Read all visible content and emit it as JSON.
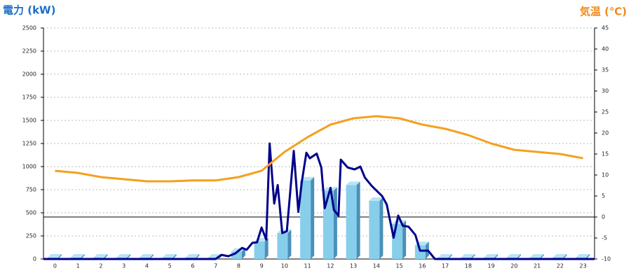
{
  "chart_data": {
    "type": "bar",
    "ylabel": "電力 (kW)",
    "y2label": "気温 (℃)",
    "categories": [
      "0",
      "1",
      "2",
      "3",
      "4",
      "5",
      "6",
      "7",
      "8",
      "9",
      "10",
      "11",
      "12",
      "13",
      "14",
      "15",
      "16",
      "17",
      "18",
      "19",
      "20",
      "21",
      "22",
      "23"
    ],
    "xlim": [
      -0.5,
      23.5
    ],
    "ylim": [
      0,
      2500
    ],
    "yticks": [
      0,
      250,
      500,
      750,
      1000,
      1250,
      1500,
      1750,
      2000,
      2250,
      2500
    ],
    "y2lim": [
      -10,
      45
    ],
    "y2ticks": [
      -10,
      -5,
      0,
      5,
      10,
      15,
      20,
      25,
      30,
      35,
      40,
      45
    ],
    "grid": true,
    "series": [
      {
        "type": "bar",
        "color": "#87ceeb",
        "values": [
          0,
          0,
          0,
          0,
          0,
          0,
          0,
          0,
          80,
          190,
          280,
          850,
          740,
          800,
          630,
          380,
          150,
          0,
          0,
          0,
          0,
          0,
          0,
          0
        ]
      },
      {
        "type": "line",
        "color": "#00008b",
        "x": [
          -0.5,
          7.0,
          7.25,
          7.55,
          7.85,
          8.15,
          8.35,
          8.6,
          8.8,
          9.0,
          9.2,
          9.35,
          9.55,
          9.7,
          9.9,
          10.1,
          10.4,
          10.6,
          10.75,
          10.95,
          11.1,
          11.4,
          11.6,
          11.75,
          12.0,
          12.15,
          12.35,
          12.45,
          12.75,
          13.05,
          13.3,
          13.5,
          13.8,
          14.25,
          14.45,
          14.75,
          14.95,
          15.15,
          15.4,
          15.7,
          15.9,
          16.25,
          16.55,
          23.5
        ],
        "values": [
          0,
          0,
          45,
          30,
          60,
          120,
          100,
          175,
          180,
          340,
          210,
          1250,
          600,
          800,
          280,
          300,
          1170,
          510,
          830,
          1150,
          1090,
          1140,
          990,
          550,
          770,
          530,
          470,
          1075,
          990,
          970,
          1000,
          880,
          790,
          680,
          590,
          230,
          470,
          360,
          350,
          260,
          90,
          90,
          0,
          0
        ]
      },
      {
        "type": "line",
        "color": "#f5a01e",
        "axis": "y2",
        "values": [
          11,
          10.5,
          9.5,
          9,
          8.5,
          8.5,
          8.7,
          8.7,
          9.5,
          11,
          15.5,
          19,
          22,
          23.5,
          24,
          23.5,
          22,
          21,
          19.5,
          17.5,
          16,
          15.5,
          15,
          14
        ]
      }
    ]
  }
}
